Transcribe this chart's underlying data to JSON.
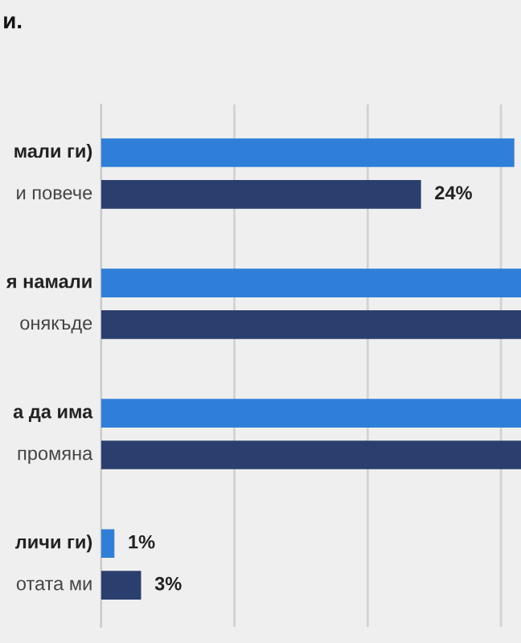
{
  "chart_data": {
    "type": "bar",
    "orientation": "horizontal",
    "title": "и.",
    "categories": [
      "мали ги)\nи повече",
      "я намали\nонякъде",
      "а да има\nпромяна",
      "личи ги)\nотата ми"
    ],
    "series": [
      {
        "color": "#2f7fd8",
        "values": [
          31,
          31.5,
          31.5,
          1
        ],
        "value_labels": [
          null,
          null,
          null,
          "1%"
        ]
      },
      {
        "color": "#2b3f6e",
        "values": [
          24,
          31.5,
          31.5,
          3
        ],
        "value_labels": [
          "24%",
          null,
          null,
          "3%"
        ]
      }
    ],
    "xlim": [
      0,
      31.5
    ],
    "xticks": [
      {
        "value": 0,
        "label": null
      },
      {
        "value": 10,
        "label": null
      },
      {
        "value": 20,
        "label": null
      },
      {
        "value": 30,
        "label": null
      }
    ],
    "grid": "x",
    "tick_labels": "y"
  }
}
